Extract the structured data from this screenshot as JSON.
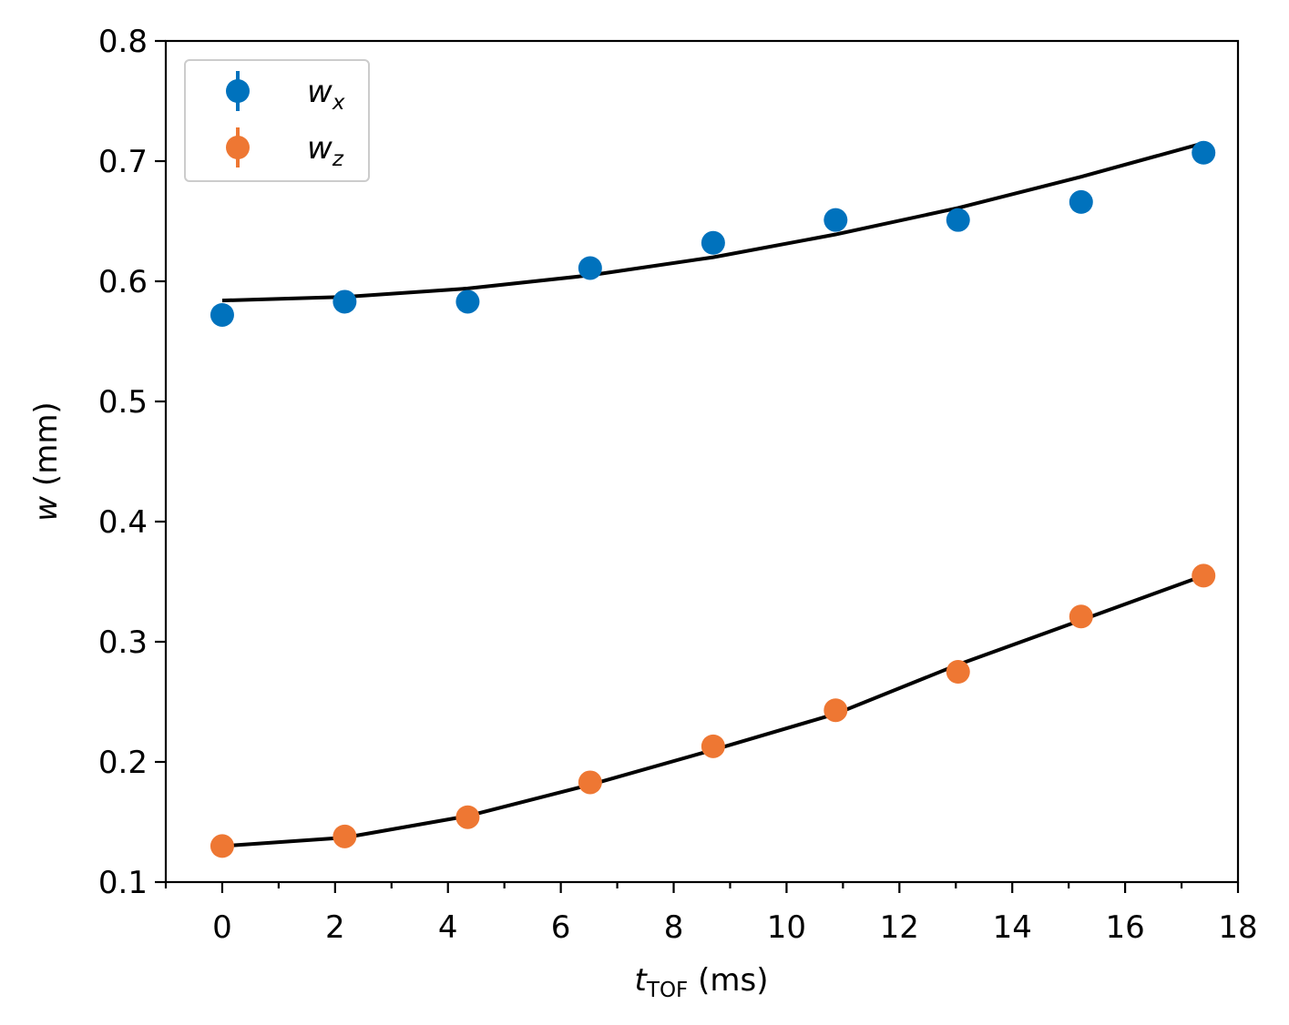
{
  "chart_data": {
    "type": "scatter",
    "title": "",
    "xlabel": {
      "main": "t",
      "subscript": "TOF",
      "unit": " (ms)"
    },
    "ylabel": {
      "main": "w",
      "unit": " (mm)"
    },
    "xlim": [
      -1,
      18
    ],
    "ylim": [
      0.1,
      0.8
    ],
    "xticks": [
      0,
      2,
      4,
      6,
      8,
      10,
      12,
      14,
      16,
      18
    ],
    "xtick_labels": [
      "0",
      "2",
      "4",
      "6",
      "8",
      "10",
      "12",
      "14",
      "16",
      "18"
    ],
    "xminor_step": 1,
    "yticks": [
      0.1,
      0.2,
      0.3,
      0.4,
      0.5,
      0.6,
      0.7,
      0.8
    ],
    "ytick_labels": [
      "0.1",
      "0.2",
      "0.3",
      "0.4",
      "0.5",
      "0.6",
      "0.7",
      "0.8"
    ],
    "legend_position": "top-left",
    "series": [
      {
        "name": "w_x",
        "label_main": "w",
        "label_sub": "x",
        "color": "#0072BD",
        "x": [
          0,
          2.17,
          4.35,
          6.52,
          8.7,
          10.87,
          13.04,
          15.22,
          17.39
        ],
        "y": [
          0.572,
          0.583,
          0.583,
          0.611,
          0.632,
          0.651,
          0.651,
          0.666,
          0.707
        ],
        "fit": {
          "color": "#000000",
          "x": [
            0,
            2.17,
            4.35,
            6.52,
            8.7,
            10.87,
            13.04,
            15.22,
            17.39
          ],
          "y": [
            0.584,
            0.587,
            0.594,
            0.605,
            0.62,
            0.639,
            0.661,
            0.687,
            0.715
          ]
        }
      },
      {
        "name": "w_z",
        "label_main": "w",
        "label_sub": "z",
        "color": "#EE7733",
        "x": [
          0,
          2.17,
          4.35,
          6.52,
          8.7,
          10.87,
          13.04,
          15.22,
          17.39
        ],
        "y": [
          0.13,
          0.138,
          0.154,
          0.183,
          0.213,
          0.243,
          0.275,
          0.321,
          0.355
        ],
        "fit": {
          "color": "#000000",
          "x": [
            0,
            2.17,
            4.35,
            6.52,
            8.7,
            10.87,
            13.04,
            15.22,
            17.39
          ],
          "y": [
            0.13,
            0.137,
            0.155,
            0.181,
            0.21,
            0.24,
            0.281,
            0.318,
            0.355
          ]
        }
      }
    ]
  }
}
